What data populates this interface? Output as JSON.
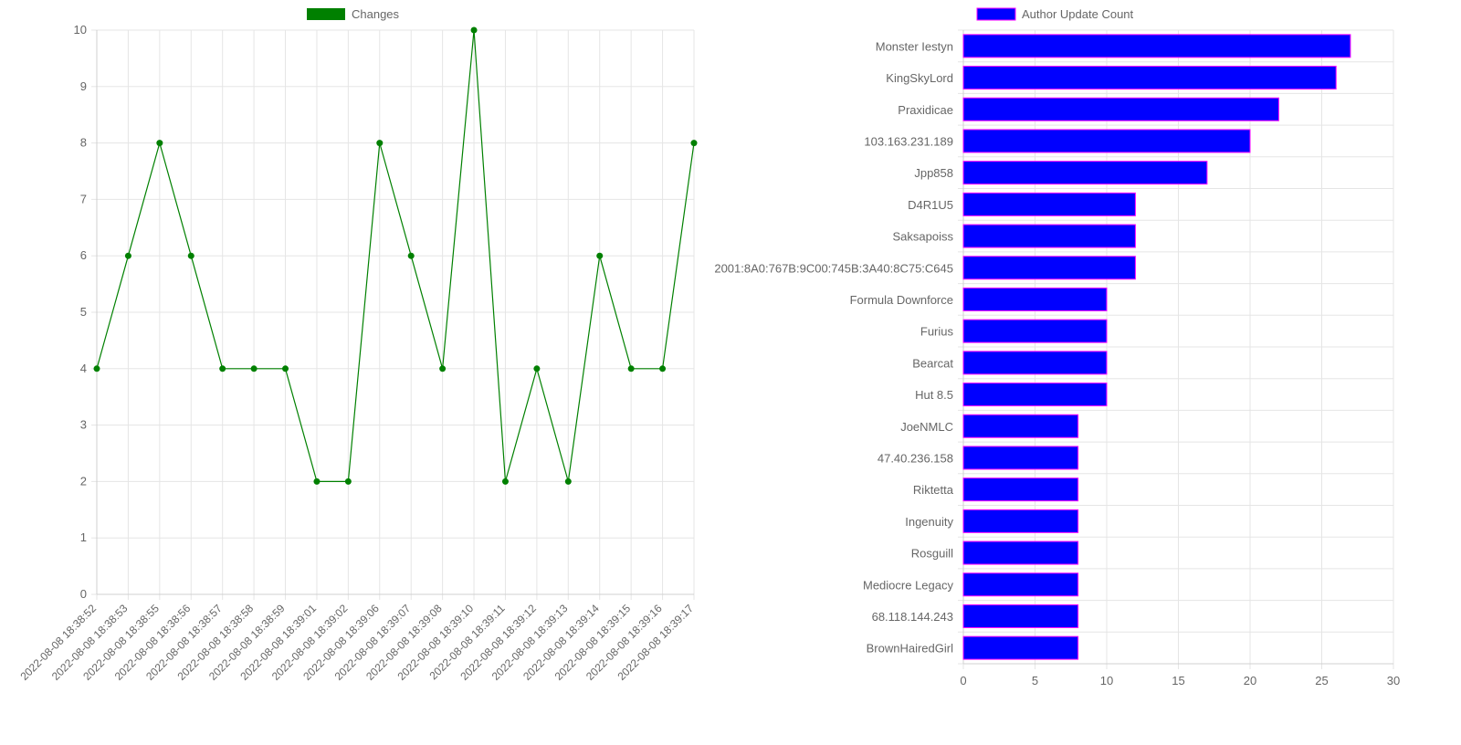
{
  "chart_data": [
    {
      "type": "line",
      "legend": {
        "label": "Changes",
        "color": "#008000",
        "placement": "top"
      },
      "series": [
        {
          "name": "Changes",
          "color": "#008000",
          "values": [
            4,
            6,
            8,
            6,
            4,
            4,
            4,
            2,
            2,
            8,
            6,
            4,
            10,
            2,
            4,
            2,
            6,
            4,
            4,
            8
          ]
        }
      ],
      "categories": [
        "2022-08-08 18:38:52",
        "2022-08-08 18:38:53",
        "2022-08-08 18:38:55",
        "2022-08-08 18:38:56",
        "2022-08-08 18:38:57",
        "2022-08-08 18:38:58",
        "2022-08-08 18:38:59",
        "2022-08-08 18:39:01",
        "2022-08-08 18:39:02",
        "2022-08-08 18:39:06",
        "2022-08-08 18:39:07",
        "2022-08-08 18:39:08",
        "2022-08-08 18:39:10",
        "2022-08-08 18:39:11",
        "2022-08-08 18:39:12",
        "2022-08-08 18:39:13",
        "2022-08-08 18:39:14",
        "2022-08-08 18:39:15",
        "2022-08-08 18:39:16",
        "2022-08-08 18:39:17"
      ],
      "ylim": [
        0,
        10
      ],
      "yticks": [
        "0",
        "1",
        "2",
        "3",
        "4",
        "5",
        "6",
        "7",
        "8",
        "9",
        "10"
      ],
      "grid": true
    },
    {
      "type": "bar",
      "orientation": "horizontal",
      "legend": {
        "label": "Author Update Count",
        "color": "#0000ff",
        "border": "#ff00ff",
        "placement": "top"
      },
      "series": [
        {
          "name": "Author Update Count",
          "color": "#0000ff",
          "border": "#ff00ff",
          "values": [
            27,
            26,
            22,
            20,
            17,
            12,
            12,
            12,
            10,
            10,
            10,
            10,
            8,
            8,
            8,
            8,
            8,
            8,
            8,
            8
          ]
        }
      ],
      "categories": [
        "Monster Iestyn",
        "KingSkyLord",
        "Praxidicae",
        "103.163.231.189",
        "Jpp858",
        "D4R1U5",
        "Saksapoiss",
        "2001:8A0:767B:9C00:745B:3A40:8C75:C645",
        "Formula Downforce",
        "Furius",
        "Bearcat",
        "Hut 8.5",
        "JoeNMLC",
        "47.40.236.158",
        "Riktetta",
        "Ingenuity",
        "Rosguill",
        "Mediocre Legacy",
        "68.118.144.243",
        "BrownHairedGirl"
      ],
      "xlim": [
        0,
        30
      ],
      "xticks": [
        "0",
        "5",
        "10",
        "15",
        "20",
        "25",
        "30"
      ],
      "grid": true
    }
  ]
}
